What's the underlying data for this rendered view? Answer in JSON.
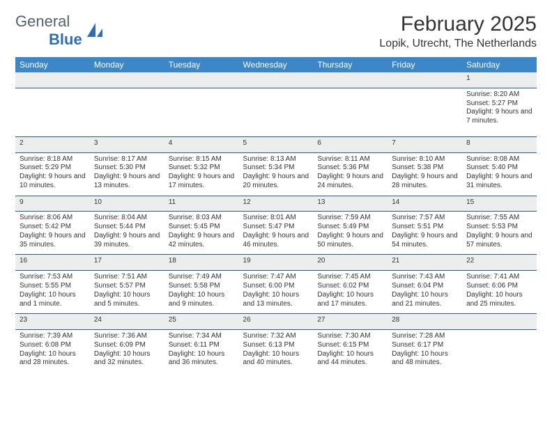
{
  "logo": {
    "text1": "General",
    "text2": "Blue"
  },
  "title": "February 2025",
  "location": "Lopik, Utrecht, The Netherlands",
  "colors": {
    "header_bg": "#3b87c8",
    "header_text": "#ffffff",
    "daynum_bg": "#eceded",
    "row_border": "#2c5b86",
    "logo_gray": "#55606a",
    "logo_blue": "#2f6fb0",
    "text": "#333333",
    "page_bg": "#ffffff"
  },
  "weekdays": [
    "Sunday",
    "Monday",
    "Tuesday",
    "Wednesday",
    "Thursday",
    "Friday",
    "Saturday"
  ],
  "weeks": [
    [
      null,
      null,
      null,
      null,
      null,
      null,
      {
        "n": "1",
        "sr": "Sunrise: 8:20 AM",
        "ss": "Sunset: 5:27 PM",
        "dl": "Daylight: 9 hours and 7 minutes."
      }
    ],
    [
      {
        "n": "2",
        "sr": "Sunrise: 8:18 AM",
        "ss": "Sunset: 5:29 PM",
        "dl": "Daylight: 9 hours and 10 minutes."
      },
      {
        "n": "3",
        "sr": "Sunrise: 8:17 AM",
        "ss": "Sunset: 5:30 PM",
        "dl": "Daylight: 9 hours and 13 minutes."
      },
      {
        "n": "4",
        "sr": "Sunrise: 8:15 AM",
        "ss": "Sunset: 5:32 PM",
        "dl": "Daylight: 9 hours and 17 minutes."
      },
      {
        "n": "5",
        "sr": "Sunrise: 8:13 AM",
        "ss": "Sunset: 5:34 PM",
        "dl": "Daylight: 9 hours and 20 minutes."
      },
      {
        "n": "6",
        "sr": "Sunrise: 8:11 AM",
        "ss": "Sunset: 5:36 PM",
        "dl": "Daylight: 9 hours and 24 minutes."
      },
      {
        "n": "7",
        "sr": "Sunrise: 8:10 AM",
        "ss": "Sunset: 5:38 PM",
        "dl": "Daylight: 9 hours and 28 minutes."
      },
      {
        "n": "8",
        "sr": "Sunrise: 8:08 AM",
        "ss": "Sunset: 5:40 PM",
        "dl": "Daylight: 9 hours and 31 minutes."
      }
    ],
    [
      {
        "n": "9",
        "sr": "Sunrise: 8:06 AM",
        "ss": "Sunset: 5:42 PM",
        "dl": "Daylight: 9 hours and 35 minutes."
      },
      {
        "n": "10",
        "sr": "Sunrise: 8:04 AM",
        "ss": "Sunset: 5:44 PM",
        "dl": "Daylight: 9 hours and 39 minutes."
      },
      {
        "n": "11",
        "sr": "Sunrise: 8:03 AM",
        "ss": "Sunset: 5:45 PM",
        "dl": "Daylight: 9 hours and 42 minutes."
      },
      {
        "n": "12",
        "sr": "Sunrise: 8:01 AM",
        "ss": "Sunset: 5:47 PM",
        "dl": "Daylight: 9 hours and 46 minutes."
      },
      {
        "n": "13",
        "sr": "Sunrise: 7:59 AM",
        "ss": "Sunset: 5:49 PM",
        "dl": "Daylight: 9 hours and 50 minutes."
      },
      {
        "n": "14",
        "sr": "Sunrise: 7:57 AM",
        "ss": "Sunset: 5:51 PM",
        "dl": "Daylight: 9 hours and 54 minutes."
      },
      {
        "n": "15",
        "sr": "Sunrise: 7:55 AM",
        "ss": "Sunset: 5:53 PM",
        "dl": "Daylight: 9 hours and 57 minutes."
      }
    ],
    [
      {
        "n": "16",
        "sr": "Sunrise: 7:53 AM",
        "ss": "Sunset: 5:55 PM",
        "dl": "Daylight: 10 hours and 1 minute."
      },
      {
        "n": "17",
        "sr": "Sunrise: 7:51 AM",
        "ss": "Sunset: 5:57 PM",
        "dl": "Daylight: 10 hours and 5 minutes."
      },
      {
        "n": "18",
        "sr": "Sunrise: 7:49 AM",
        "ss": "Sunset: 5:58 PM",
        "dl": "Daylight: 10 hours and 9 minutes."
      },
      {
        "n": "19",
        "sr": "Sunrise: 7:47 AM",
        "ss": "Sunset: 6:00 PM",
        "dl": "Daylight: 10 hours and 13 minutes."
      },
      {
        "n": "20",
        "sr": "Sunrise: 7:45 AM",
        "ss": "Sunset: 6:02 PM",
        "dl": "Daylight: 10 hours and 17 minutes."
      },
      {
        "n": "21",
        "sr": "Sunrise: 7:43 AM",
        "ss": "Sunset: 6:04 PM",
        "dl": "Daylight: 10 hours and 21 minutes."
      },
      {
        "n": "22",
        "sr": "Sunrise: 7:41 AM",
        "ss": "Sunset: 6:06 PM",
        "dl": "Daylight: 10 hours and 25 minutes."
      }
    ],
    [
      {
        "n": "23",
        "sr": "Sunrise: 7:39 AM",
        "ss": "Sunset: 6:08 PM",
        "dl": "Daylight: 10 hours and 28 minutes."
      },
      {
        "n": "24",
        "sr": "Sunrise: 7:36 AM",
        "ss": "Sunset: 6:09 PM",
        "dl": "Daylight: 10 hours and 32 minutes."
      },
      {
        "n": "25",
        "sr": "Sunrise: 7:34 AM",
        "ss": "Sunset: 6:11 PM",
        "dl": "Daylight: 10 hours and 36 minutes."
      },
      {
        "n": "26",
        "sr": "Sunrise: 7:32 AM",
        "ss": "Sunset: 6:13 PM",
        "dl": "Daylight: 10 hours and 40 minutes."
      },
      {
        "n": "27",
        "sr": "Sunrise: 7:30 AM",
        "ss": "Sunset: 6:15 PM",
        "dl": "Daylight: 10 hours and 44 minutes."
      },
      {
        "n": "28",
        "sr": "Sunrise: 7:28 AM",
        "ss": "Sunset: 6:17 PM",
        "dl": "Daylight: 10 hours and 48 minutes."
      },
      null
    ]
  ]
}
